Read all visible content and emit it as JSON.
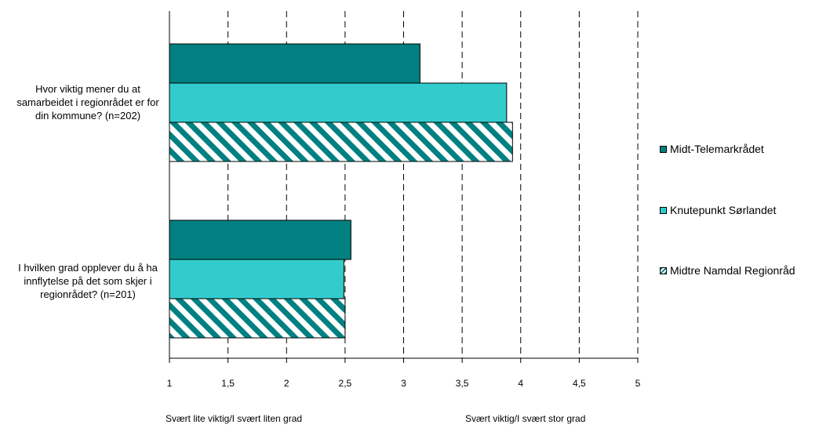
{
  "chart_data": {
    "type": "bar",
    "orientation": "horizontal",
    "categories": [
      "Hvor viktig mener du at samarbeidet i regionrådet er for din kommune? (n=202)",
      "I hvilken grad opplever du å ha innflytelse på det som skjer i regionrådet? (n=201)"
    ],
    "series": [
      {
        "name": "Midt-Telemarkrådet",
        "values": [
          3.14,
          2.55
        ],
        "color": "#008080",
        "pattern": "solid"
      },
      {
        "name": "Knutepunkt Sørlandet",
        "values": [
          3.88,
          2.49
        ],
        "color": "#33CCCC",
        "pattern": "solid"
      },
      {
        "name": "Midtre Namdal Regionråd",
        "values": [
          3.93,
          2.5
        ],
        "color": "#008080",
        "pattern": "diagonal-stripes"
      }
    ],
    "xlim": [
      1,
      5
    ],
    "xticks": [
      "1",
      "1,5",
      "2",
      "2,5",
      "3",
      "3,5",
      "4",
      "4,5",
      "5"
    ],
    "grid": "vertical-dashed",
    "legend_position": "right",
    "axis_notes": {
      "low": "Svært lite viktig/I svært liten grad",
      "high": "Svært viktig/I svært stor grad"
    }
  }
}
